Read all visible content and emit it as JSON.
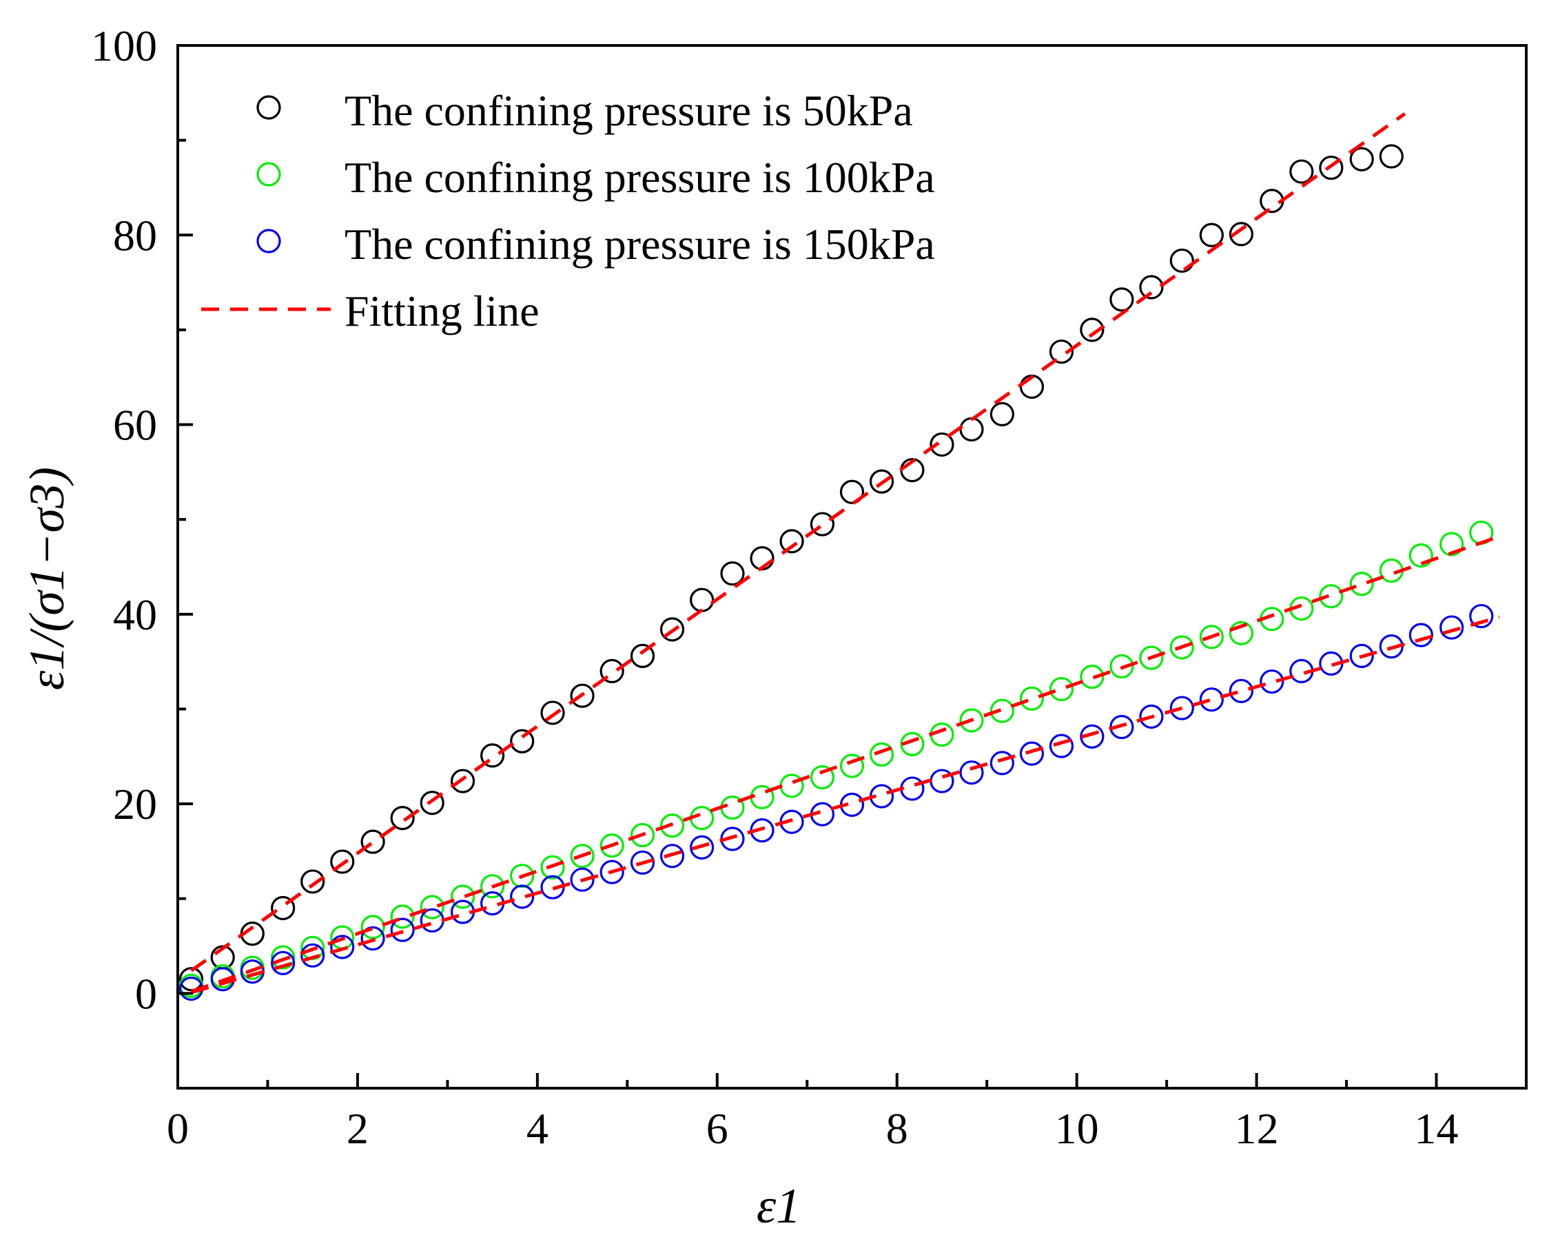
{
  "chart_data": {
    "type": "scatter",
    "xlabel": "ε1",
    "ylabel": "ε1/(σ1−σ3)",
    "xlim": [
      0,
      15
    ],
    "ylim": [
      -10,
      100
    ],
    "x_ticks": [
      0,
      2,
      4,
      6,
      8,
      10,
      12,
      14
    ],
    "y_ticks": [
      0,
      20,
      40,
      60,
      80,
      100
    ],
    "legend_position": "top-left",
    "series": [
      {
        "name": "The confining pressure is 50kPa",
        "color": "#000000",
        "marker": "circle-open",
        "x": [
          0.15,
          0.5,
          0.83,
          1.17,
          1.5,
          1.83,
          2.17,
          2.5,
          2.83,
          3.17,
          3.5,
          3.83,
          4.17,
          4.5,
          4.83,
          5.17,
          5.5,
          5.83,
          6.17,
          6.5,
          6.83,
          7.17,
          7.5,
          7.83,
          8.17,
          8.5,
          8.83,
          9.17,
          9.5,
          9.83,
          10.17,
          10.5,
          10.83,
          11.17,
          11.5,
          11.83,
          12.17,
          12.5,
          12.83,
          13.17,
          13.5
        ],
        "y": [
          1.5,
          3.8,
          6.3,
          9.0,
          11.8,
          13.9,
          16.0,
          18.5,
          20.1,
          22.4,
          25.1,
          26.6,
          29.6,
          31.4,
          34.0,
          35.6,
          38.4,
          41.5,
          44.3,
          45.9,
          47.7,
          49.5,
          52.9,
          54.0,
          55.2,
          57.9,
          59.5,
          61.1,
          64.0,
          67.7,
          70.0,
          73.2,
          74.5,
          77.3,
          80.0,
          80.1,
          83.6,
          86.7,
          87.1,
          88.0,
          88.3
        ]
      },
      {
        "name": "The confining pressure is 100kPa",
        "color": "#00ee00",
        "marker": "circle-open",
        "x": [
          0.15,
          0.5,
          0.83,
          1.17,
          1.5,
          1.83,
          2.17,
          2.5,
          2.83,
          3.17,
          3.5,
          3.83,
          4.17,
          4.5,
          4.83,
          5.17,
          5.5,
          5.83,
          6.17,
          6.5,
          6.83,
          7.17,
          7.5,
          7.83,
          8.17,
          8.5,
          8.83,
          9.17,
          9.5,
          9.83,
          10.17,
          10.5,
          10.83,
          11.17,
          11.5,
          11.83,
          12.17,
          12.5,
          12.83,
          13.17,
          13.5,
          13.83,
          14.17,
          14.5
        ],
        "y": [
          0.8,
          1.8,
          2.7,
          3.8,
          4.8,
          5.9,
          7.0,
          8.1,
          9.1,
          10.2,
          11.3,
          12.4,
          13.3,
          14.5,
          15.6,
          16.7,
          17.7,
          18.5,
          19.6,
          20.7,
          21.9,
          22.8,
          24.0,
          25.2,
          26.3,
          27.3,
          28.8,
          29.8,
          31.1,
          32.1,
          33.4,
          34.5,
          35.4,
          36.5,
          37.6,
          38.0,
          39.5,
          40.6,
          41.9,
          43.2,
          44.6,
          46.2,
          47.4,
          48.6
        ]
      },
      {
        "name": "The confining pressure is 150kPa",
        "color": "#0000ee",
        "marker": "circle-open",
        "x": [
          0.15,
          0.5,
          0.83,
          1.17,
          1.5,
          1.83,
          2.17,
          2.5,
          2.83,
          3.17,
          3.5,
          3.83,
          4.17,
          4.5,
          4.83,
          5.17,
          5.5,
          5.83,
          6.17,
          6.5,
          6.83,
          7.17,
          7.5,
          7.83,
          8.17,
          8.5,
          8.83,
          9.17,
          9.5,
          9.83,
          10.17,
          10.5,
          10.83,
          11.17,
          11.5,
          11.83,
          12.17,
          12.5,
          12.83,
          13.17,
          13.5,
          13.83,
          14.17,
          14.5
        ],
        "y": [
          0.5,
          1.5,
          2.3,
          3.2,
          4.0,
          4.9,
          5.8,
          6.7,
          7.7,
          8.6,
          9.5,
          10.2,
          11.2,
          12.0,
          12.8,
          13.8,
          14.5,
          15.4,
          16.3,
          17.2,
          18.1,
          18.9,
          19.9,
          20.8,
          21.6,
          22.4,
          23.3,
          24.3,
          25.3,
          26.1,
          27.1,
          28.1,
          29.2,
          30.1,
          31.0,
          31.9,
          32.9,
          34.0,
          34.8,
          35.6,
          36.6,
          37.8,
          38.6,
          39.8
        ]
      },
      {
        "name": "Fitting line",
        "color": "#ff0000",
        "style": "dashed",
        "lines": [
          {
            "x": [
              0.15,
              13.65
            ],
            "y": [
              2.4,
              92.8
            ]
          },
          {
            "x": [
              0.15,
              14.7
            ],
            "y": [
              0.2,
              48.2
            ]
          },
          {
            "x": [
              0.15,
              14.7
            ],
            "y": [
              0.1,
              39.7
            ]
          }
        ]
      }
    ]
  }
}
